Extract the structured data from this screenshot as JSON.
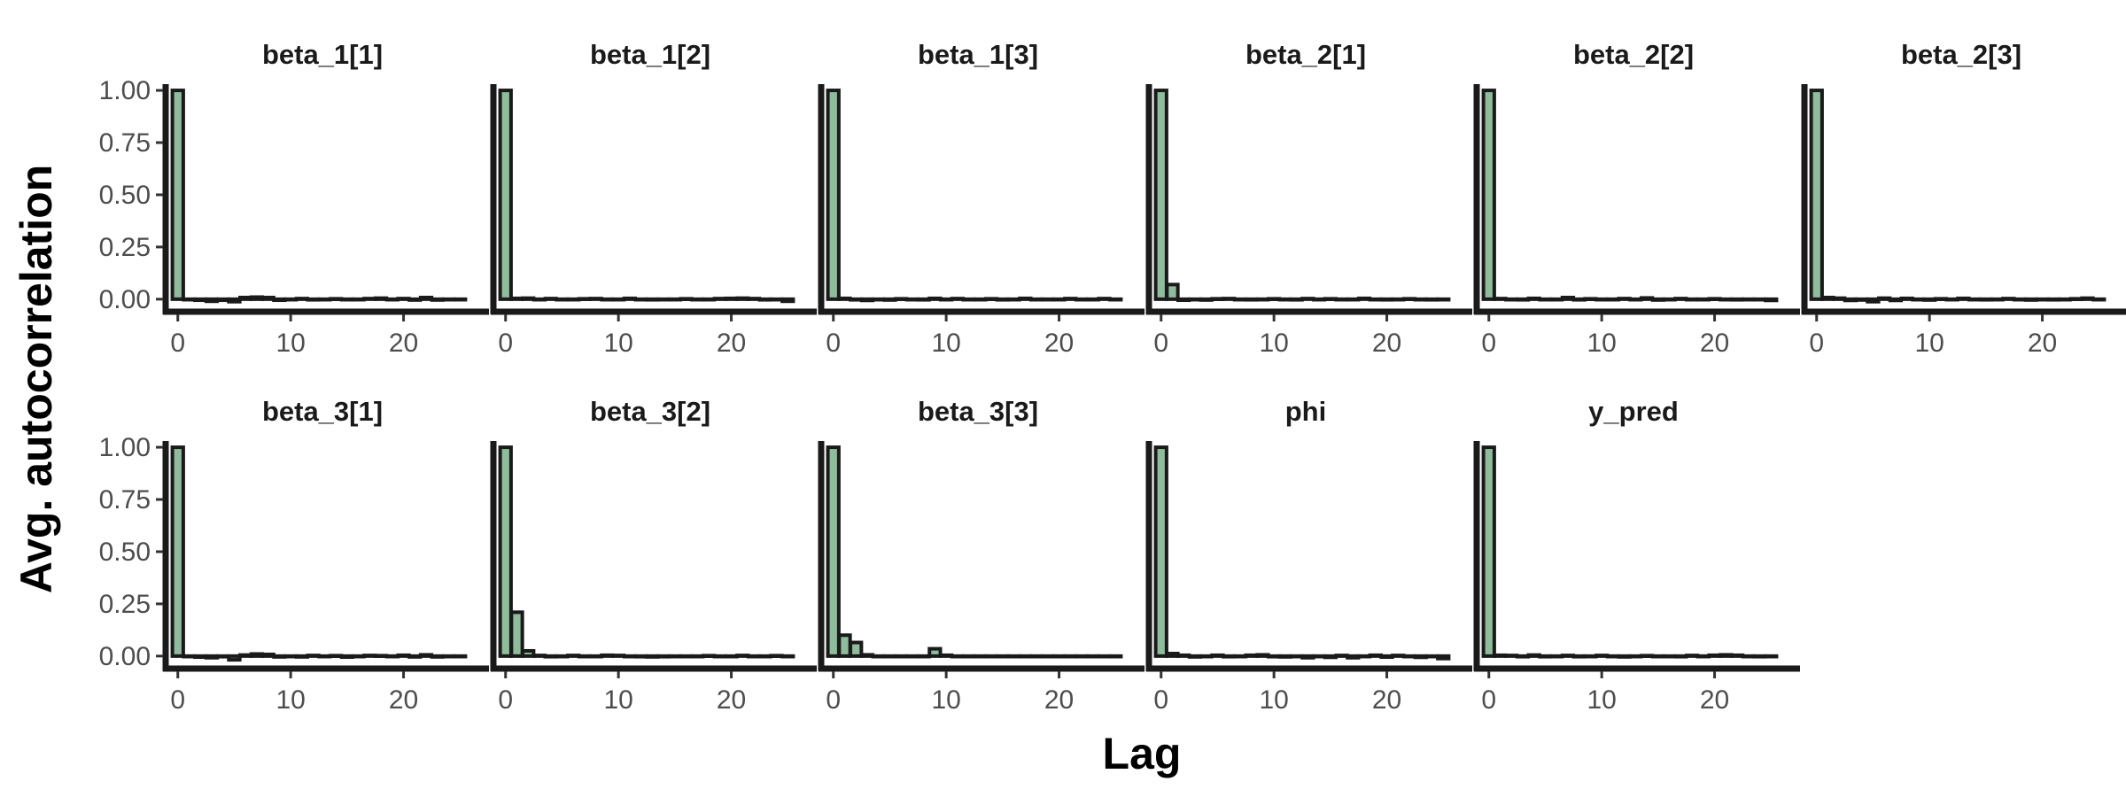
{
  "chart_data": {
    "type": "bar",
    "xlabel": "Lag",
    "ylabel": "Avg.  autocorrelation",
    "xlim": [
      -1,
      26
    ],
    "ylim": [
      -0.06,
      1.03
    ],
    "x_ticks": [
      0,
      10,
      20
    ],
    "y_ticks": [
      0.0,
      0.25,
      0.5,
      0.75,
      1.0
    ],
    "y_tick_labels": [
      "0.00",
      "0.25",
      "0.50",
      "0.75",
      "1.00"
    ],
    "bar_color": "#8fbc9c",
    "lags": [
      0,
      1,
      2,
      3,
      4,
      5,
      6,
      7,
      8,
      9,
      10,
      11,
      12,
      13,
      14,
      15,
      16,
      17,
      18,
      19,
      20,
      21,
      22,
      23,
      24,
      25
    ],
    "panels": [
      {
        "name": "beta_1[1]",
        "values": [
          1.0,
          0.0,
          -0.005,
          -0.01,
          -0.005,
          -0.012,
          0.008,
          0.01,
          0.008,
          -0.005,
          0.0,
          0.003,
          -0.003,
          0.0,
          0.002,
          -0.002,
          0.0,
          0.003,
          0.005,
          0.0,
          0.003,
          -0.004,
          0.008,
          -0.004,
          0.0,
          0.0
        ]
      },
      {
        "name": "beta_1[2]",
        "values": [
          1.0,
          0.004,
          0.005,
          0.0,
          0.003,
          -0.002,
          0.0,
          0.002,
          0.003,
          -0.002,
          0.0,
          0.004,
          0.0,
          -0.003,
          0.0,
          -0.002,
          0.002,
          0.0,
          -0.002,
          0.003,
          0.004,
          0.005,
          0.003,
          -0.003,
          0.0,
          -0.01
        ]
      },
      {
        "name": "beta_1[3]",
        "values": [
          1.0,
          0.004,
          -0.003,
          -0.006,
          0.0,
          -0.004,
          0.002,
          0.0,
          -0.003,
          0.004,
          0.0,
          0.003,
          -0.002,
          0.0,
          0.002,
          -0.003,
          0.0,
          0.004,
          0.0,
          -0.002,
          0.0,
          0.003,
          -0.002,
          0.0,
          0.003,
          -0.002
        ]
      },
      {
        "name": "beta_2[1]",
        "values": [
          1.0,
          0.07,
          -0.005,
          0.0,
          -0.004,
          0.002,
          0.003,
          0.0,
          -0.003,
          0.0,
          0.002,
          0.0,
          -0.003,
          0.003,
          0.0,
          0.002,
          0.0,
          -0.002,
          0.004,
          0.0,
          -0.003,
          0.0,
          0.002,
          0.0,
          -0.003,
          0.0
        ]
      },
      {
        "name": "beta_2[2]",
        "values": [
          1.0,
          0.003,
          0.0,
          -0.003,
          0.004,
          -0.002,
          0.0,
          0.008,
          -0.003,
          0.002,
          0.0,
          -0.002,
          0.003,
          0.0,
          0.006,
          -0.004,
          0.0,
          0.003,
          -0.002,
          0.0,
          0.002,
          0.0,
          -0.003,
          0.0,
          -0.002,
          -0.006
        ]
      },
      {
        "name": "beta_2[3]",
        "values": [
          1.0,
          0.008,
          0.005,
          -0.006,
          -0.004,
          -0.012,
          0.005,
          -0.006,
          0.004,
          0.0,
          -0.004,
          0.002,
          0.0,
          0.004,
          0.0,
          -0.003,
          0.0,
          0.003,
          0.0,
          -0.004,
          0.0,
          -0.003,
          0.0,
          0.002,
          0.005,
          -0.002
        ]
      }
    ],
    "panels_row2": [
      {
        "name": "beta_3[1]",
        "values": [
          1.0,
          0.0,
          -0.005,
          -0.008,
          -0.003,
          -0.018,
          0.005,
          0.01,
          0.008,
          -0.004,
          0.0,
          -0.004,
          0.003,
          0.0,
          0.002,
          -0.005,
          0.0,
          0.003,
          0.002,
          0.0,
          0.004,
          -0.004,
          0.006,
          -0.004,
          0.0,
          0.0
        ]
      },
      {
        "name": "beta_3[2]",
        "values": [
          1.0,
          0.21,
          0.025,
          0.003,
          -0.003,
          0.0,
          0.003,
          -0.002,
          0.0,
          0.004,
          0.003,
          0.0,
          -0.003,
          -0.004,
          -0.003,
          0.0,
          -0.002,
          0.0,
          0.002,
          -0.002,
          0.0,
          0.003,
          -0.002,
          0.0,
          0.002,
          0.0
        ]
      },
      {
        "name": "beta_3[3]",
        "values": [
          1.0,
          0.1,
          0.065,
          0.006,
          0.0,
          0.0,
          0.0,
          0.0,
          0.0,
          0.035,
          0.004,
          0.0,
          0.0,
          0.0,
          0.0,
          0.0,
          0.0,
          0.0,
          0.0,
          0.0,
          0.0,
          0.0,
          0.0,
          0.0,
          0.0,
          0.0
        ]
      },
      {
        "name": "phi",
        "values": [
          1.0,
          0.012,
          0.004,
          -0.004,
          0.0,
          0.004,
          -0.003,
          0.0,
          0.004,
          0.006,
          -0.003,
          -0.004,
          0.0,
          -0.008,
          0.0,
          -0.006,
          0.003,
          -0.008,
          0.0,
          0.004,
          -0.005,
          0.003,
          0.0,
          -0.006,
          0.0,
          -0.012
        ]
      },
      {
        "name": "y_pred",
        "values": [
          1.0,
          0.004,
          0.003,
          -0.003,
          0.005,
          -0.003,
          0.0,
          0.003,
          -0.003,
          0.0,
          0.003,
          0.0,
          -0.004,
          0.0,
          0.002,
          -0.002,
          0.0,
          -0.003,
          0.003,
          0.0,
          0.004,
          0.006,
          0.004,
          0.0,
          -0.003,
          0.0
        ]
      }
    ]
  }
}
